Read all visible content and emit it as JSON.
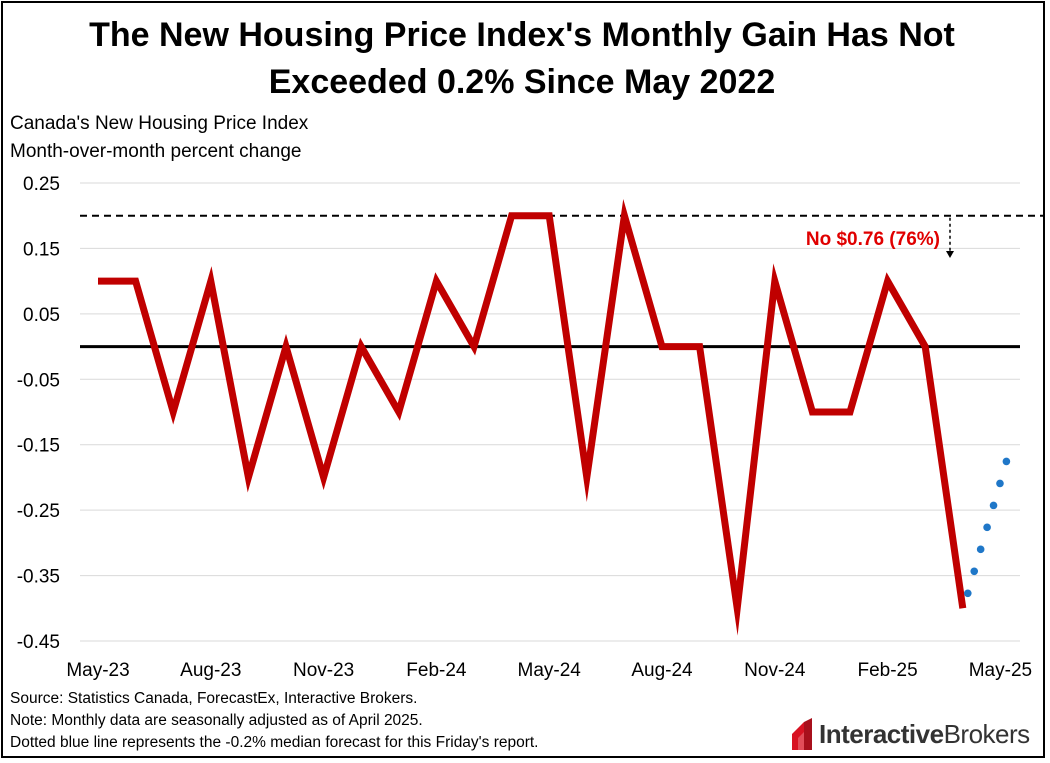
{
  "title_line1": "The New Housing Price Index's Monthly Gain Has Not",
  "title_line2": "Exceeded 0.2% Since May 2022",
  "subtitle_line1": "Canada's New Housing Price Index",
  "subtitle_line2": "Month-over-month percent change",
  "notes": {
    "source": "Source: Statistics Canada, ForecastEx, Interactive Brokers.",
    "note": "Note: Monthly data are seasonally adjusted as of April 2025.",
    "dotted": "Dotted blue line represents the -0.2% median forecast for this Friday's report."
  },
  "logo": {
    "brand_bold": "Interactive",
    "brand_light": "Brokers"
  },
  "colors": {
    "series": "#C00000",
    "forecast": "#1F77C8",
    "grid": "#D9D9D9",
    "annotation": "#E00000"
  },
  "chart_data": {
    "type": "line",
    "title": "The New Housing Price Index's Monthly Gain Has Not Exceeded 0.2% Since May 2022",
    "ylabel": "Month-over-month percent change",
    "ylim": [
      -0.45,
      0.25
    ],
    "yticks": [
      "0.25",
      "0.15",
      "0.05",
      "-0.05",
      "-0.15",
      "-0.25",
      "-0.35",
      "-0.45"
    ],
    "ytick_values": [
      0.25,
      0.15,
      0.05,
      -0.05,
      -0.15,
      -0.25,
      -0.35,
      -0.45
    ],
    "xtick_labels": [
      "May-23",
      "Aug-23",
      "Nov-23",
      "Feb-24",
      "May-24",
      "Aug-24",
      "Nov-24",
      "Feb-25",
      "May-25"
    ],
    "xtick_index": [
      0,
      3,
      6,
      9,
      12,
      15,
      18,
      21,
      24
    ],
    "months": [
      "May-23",
      "Jun-23",
      "Jul-23",
      "Aug-23",
      "Sep-23",
      "Oct-23",
      "Nov-23",
      "Dec-23",
      "Jan-24",
      "Feb-24",
      "Mar-24",
      "Apr-24",
      "May-24",
      "Jun-24",
      "Jul-24",
      "Aug-24",
      "Sep-24",
      "Oct-24",
      "Nov-24",
      "Dec-24",
      "Jan-25",
      "Feb-25",
      "Mar-25",
      "Apr-25"
    ],
    "series": [
      {
        "name": "New Housing Price Index MoM %",
        "values": [
          0.1,
          0.1,
          -0.1,
          0.1,
          -0.2,
          0.0,
          -0.2,
          0.0,
          -0.1,
          0.1,
          0.0,
          0.2,
          0.2,
          -0.2,
          0.2,
          0.0,
          0.0,
          -0.4,
          0.1,
          -0.1,
          -0.1,
          0.1,
          0.0,
          -0.4
        ]
      },
      {
        "name": "Median forecast (dotted)",
        "style": "dotted",
        "x_start_index": 23,
        "x_end_index": 24,
        "values": [
          -0.4,
          -0.2
        ]
      }
    ],
    "reference_lines": [
      {
        "y": 0.0,
        "style": "solid"
      },
      {
        "y": 0.2,
        "style": "dashed"
      }
    ],
    "annotation": {
      "text": "No $0.76 (76%)"
    }
  }
}
